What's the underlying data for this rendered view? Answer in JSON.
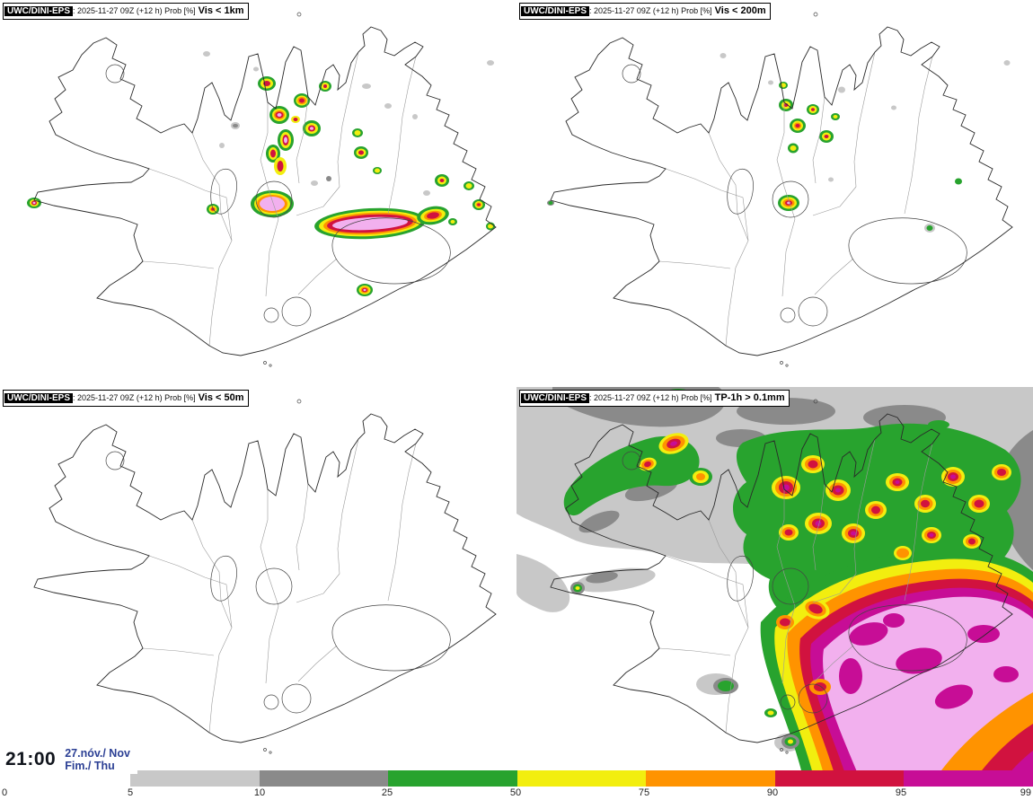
{
  "header": {
    "model": "UWC/DINI-EPS",
    "meta": ": 2025-11-27 09Z (+12 h) Prob [%]"
  },
  "panels": [
    {
      "threshold": "Vis < 1km"
    },
    {
      "threshold": "Vis < 200m"
    },
    {
      "threshold": "Vis < 50m"
    },
    {
      "threshold": "TP-1h > 0.1mm"
    }
  ],
  "footer": {
    "time": "21:00",
    "date": "27.nóv./ Nov",
    "day": "Fim./ Thu"
  },
  "legend": {
    "ticks": [
      "0",
      "5",
      "10",
      "25",
      "50",
      "75",
      "90",
      "95",
      "99"
    ],
    "segment_colors": [
      "#c8c8c8",
      "#8a8a8a",
      "#28a32e",
      "#f2ee0f",
      "#ff9300",
      "#d1123f",
      "#c70d96"
    ],
    "over99_color": "#f2b0ee",
    "map_keys": [
      "g1",
      "g2",
      "gr",
      "ye",
      "or",
      "re",
      "ma"
    ]
  }
}
